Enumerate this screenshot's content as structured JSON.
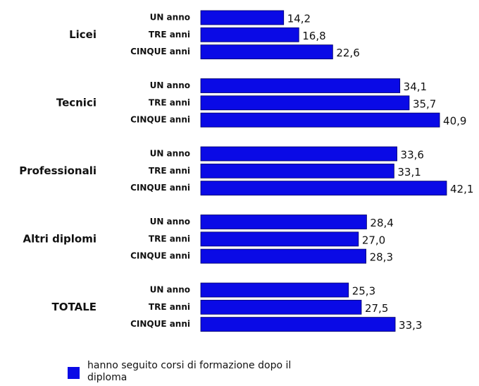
{
  "chart_data": {
    "type": "bar",
    "orientation": "horizontal",
    "groups": [
      "Licei",
      "Tecnici",
      "Professionali",
      "Altri diplomi",
      "TOTALE"
    ],
    "categories": [
      "UN anno",
      "TRE anni",
      "CINQUE anni",
      "UN anno",
      "TRE anni",
      "CINQUE anni",
      "UN anno",
      "TRE anni",
      "CINQUE anni",
      "UN anno",
      "TRE anni",
      "CINQUE anni",
      "UN anno",
      "TRE anni",
      "CINQUE anni"
    ],
    "series": [
      {
        "name": "hanno seguito corsi di formazione dopo il diploma",
        "color": "#0a0ae6",
        "values": [
          14.2,
          16.8,
          22.6,
          34.1,
          35.7,
          40.9,
          33.6,
          33.1,
          42.1,
          28.4,
          27.0,
          28.3,
          25.3,
          27.5,
          33.3
        ],
        "value_labels": [
          "14,2",
          "16,8",
          "22,6",
          "34,1",
          "35,7",
          "40,9",
          "33,6",
          "33,1",
          "42,1",
          "28,4",
          "27,0",
          "28,3",
          "25,3",
          "27,5",
          "33,3"
        ]
      }
    ],
    "legend": "bottom-left"
  }
}
